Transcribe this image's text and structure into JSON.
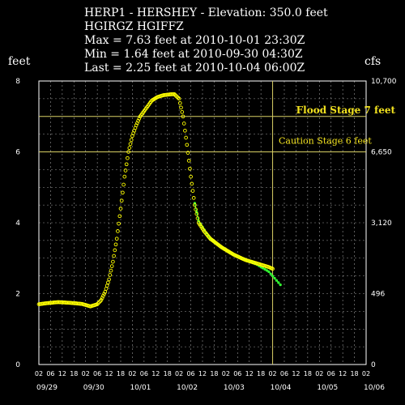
{
  "header": {
    "line1": "HERP1 - HERSHEY - Elevation: 350.0 feet",
    "line2": "HGIRGZ    HGIFFZ",
    "line3": "Max = 7.63 feet at 2010-10-01 23:30Z",
    "line4": "Min = 1.64 feet at 2010-09-30 04:30Z",
    "line5": "Last = 2.25 feet at 2010-10-04 06:00Z"
  },
  "colors": {
    "observed": "#ffff00",
    "forecast": "#33ff33",
    "stage_lines": "#d8cf64",
    "grid": "#9a9a9a",
    "frame": "#ffffff"
  },
  "chart_data": {
    "type": "line",
    "left_axis_unit": "feet",
    "right_axis_unit": "cfs",
    "ylim": [
      0,
      8
    ],
    "y_ticks": [
      "0",
      "2",
      "4",
      "6",
      "8"
    ],
    "right_ticks": [
      {
        "at_feet": 0,
        "label": "0"
      },
      {
        "at_feet": 2,
        "label": "496"
      },
      {
        "at_feet": 4,
        "label": "3,120"
      },
      {
        "at_feet": 6,
        "label": "6,650"
      },
      {
        "at_feet": 8,
        "label": "10,700"
      }
    ],
    "xlim": [
      "2010-09-29 02:00",
      "2010-10-06 02:00"
    ],
    "x_hour_labels": [
      "02",
      "06",
      "12",
      "18",
      "02",
      "06",
      "12",
      "18",
      "02",
      "06",
      "12",
      "18",
      "02",
      "06",
      "12",
      "18",
      "02",
      "06",
      "12",
      "18",
      "02",
      "06",
      "12",
      "18",
      "02",
      "06",
      "12",
      "18",
      "02"
    ],
    "x_date_labels": [
      "09/29",
      "09/30",
      "10/01",
      "10/02",
      "10/03",
      "10/04",
      "10/05",
      "10/06"
    ],
    "grid": true,
    "flood_stage": {
      "value": 7,
      "label": "Flood Stage  7 feet"
    },
    "caution_stage": {
      "value": 6,
      "label": "Caution Stage 6 feet"
    },
    "now_marker": "2010-10-04 02:00",
    "series": [
      {
        "kind": "observed",
        "points": [
          [
            "2010-09-29 02:00",
            1.7
          ],
          [
            "2010-09-29 06:00",
            1.73
          ],
          [
            "2010-09-29 12:00",
            1.76
          ],
          [
            "2010-09-29 18:00",
            1.74
          ],
          [
            "2010-09-30 00:00",
            1.71
          ],
          [
            "2010-09-30 04:30",
            1.64
          ],
          [
            "2010-09-30 08:00",
            1.7
          ],
          [
            "2010-09-30 10:00",
            1.82
          ],
          [
            "2010-09-30 12:00",
            2.05
          ],
          [
            "2010-09-30 14:00",
            2.4
          ],
          [
            "2010-09-30 16:00",
            2.9
          ],
          [
            "2010-09-30 18:00",
            3.55
          ],
          [
            "2010-09-30 20:00",
            4.4
          ],
          [
            "2010-09-30 22:00",
            5.3
          ],
          [
            "2010-10-01 00:00",
            6.0
          ],
          [
            "2010-10-01 02:00",
            6.45
          ],
          [
            "2010-10-01 04:00",
            6.75
          ],
          [
            "2010-10-01 06:00",
            7.0
          ],
          [
            "2010-10-01 08:00",
            7.15
          ],
          [
            "2010-10-01 10:00",
            7.3
          ],
          [
            "2010-10-01 12:00",
            7.45
          ],
          [
            "2010-10-01 15:00",
            7.55
          ],
          [
            "2010-10-01 18:00",
            7.6
          ],
          [
            "2010-10-01 21:00",
            7.62
          ],
          [
            "2010-10-01 23:30",
            7.63
          ],
          [
            "2010-10-02 02:00",
            7.5
          ],
          [
            "2010-10-02 04:00",
            7.0
          ],
          [
            "2010-10-02 06:00",
            6.2
          ],
          [
            "2010-10-02 08:00",
            5.3
          ],
          [
            "2010-10-02 10:00",
            4.5
          ],
          [
            "2010-10-02 12:00",
            4.0
          ],
          [
            "2010-10-02 15:00",
            3.75
          ],
          [
            "2010-10-02 18:00",
            3.55
          ],
          [
            "2010-10-03 00:00",
            3.3
          ],
          [
            "2010-10-03 06:00",
            3.1
          ],
          [
            "2010-10-03 12:00",
            2.95
          ],
          [
            "2010-10-03 18:00",
            2.85
          ],
          [
            "2010-10-04 00:00",
            2.75
          ],
          [
            "2010-10-04 02:00",
            2.7
          ]
        ]
      },
      {
        "kind": "forecast",
        "points": [
          [
            "2010-10-02 10:00",
            4.55
          ],
          [
            "2010-10-02 12:00",
            4.05
          ],
          [
            "2010-10-02 18:00",
            3.55
          ],
          [
            "2010-10-03 00:00",
            3.3
          ],
          [
            "2010-10-03 06:00",
            3.1
          ],
          [
            "2010-10-03 12:00",
            2.95
          ],
          [
            "2010-10-03 18:00",
            2.82
          ],
          [
            "2010-10-04 00:00",
            2.62
          ],
          [
            "2010-10-04 06:00",
            2.25
          ]
        ]
      }
    ]
  }
}
